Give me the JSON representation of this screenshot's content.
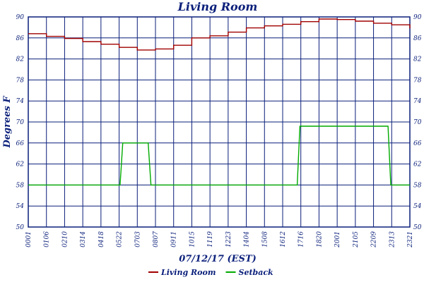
{
  "chart_data": {
    "type": "line",
    "title": "Living Room",
    "xlabel": "07/12/17 (EST)",
    "ylabel": "Degrees F",
    "ylim": [
      50,
      90
    ],
    "y_ticks": [
      "50",
      "54",
      "58",
      "62",
      "66",
      "70",
      "74",
      "78",
      "82",
      "86",
      "90"
    ],
    "x_ticks": [
      "00:01",
      "01:06",
      "02:10",
      "03:14",
      "04:18",
      "05:22",
      "07:03",
      "08:07",
      "09:11",
      "10:15",
      "11:19",
      "12:23",
      "14:04",
      "15:08",
      "16:12",
      "17:16",
      "18:20",
      "20:01",
      "21:05",
      "22:09",
      "23:13",
      "23:21"
    ],
    "x_tick_labels": [
      "0001",
      "0106",
      "0210",
      "0314",
      "0418",
      "0522",
      "0703",
      "0807",
      "0911",
      "1015",
      "1119",
      "1223",
      "1404",
      "1508",
      "1612",
      "1716",
      "1820",
      "2001",
      "2105",
      "2209",
      "2313",
      "2321"
    ],
    "grid": true,
    "legend": "bottom",
    "series": [
      {
        "name": "Living Room",
        "color": "#a00000",
        "values": [
          86.8,
          86.3,
          85.9,
          85.3,
          84.8,
          84.2,
          83.7,
          83.9,
          84.6,
          86.0,
          86.4,
          87.1,
          87.9,
          88.3,
          88.6,
          89.1,
          89.6,
          89.5,
          89.2,
          88.8,
          88.5,
          87.8
        ]
      },
      {
        "name": "Setback",
        "color": "#00aa00",
        "values": [
          58,
          58,
          58,
          58,
          58,
          58,
          66,
          58,
          58,
          58,
          58,
          58,
          58,
          58,
          58,
          69.2,
          69.2,
          69.2,
          69.2,
          69.2,
          58,
          58
        ],
        "steps": [
          {
            "x": 0,
            "y": 58
          },
          {
            "x": 5.05,
            "y": 58
          },
          {
            "x": 5.2,
            "y": 66
          },
          {
            "x": 6.6,
            "y": 66
          },
          {
            "x": 6.75,
            "y": 58
          },
          {
            "x": 14.8,
            "y": 58
          },
          {
            "x": 14.95,
            "y": 69.2
          },
          {
            "x": 19.8,
            "y": 69.2
          },
          {
            "x": 19.95,
            "y": 58
          },
          {
            "x": 21.0,
            "y": 58
          }
        ]
      }
    ]
  }
}
